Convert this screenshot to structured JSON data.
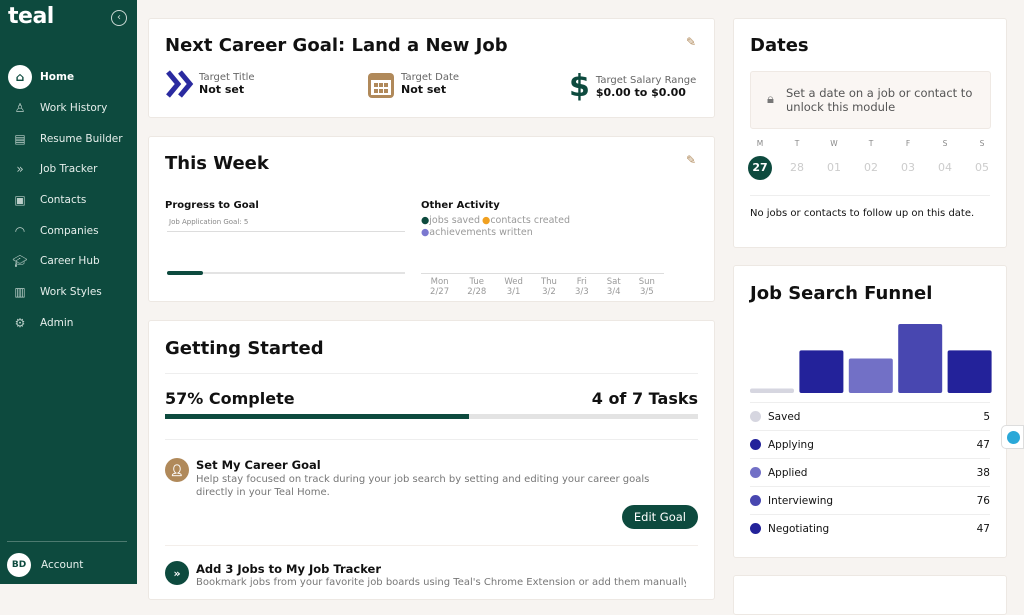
{
  "sidebar": {
    "logo": "teal",
    "collapse_icon": "chevron-left-icon",
    "items": [
      {
        "label": "Home",
        "icon": "home-icon",
        "active": true
      },
      {
        "label": "Work History",
        "icon": "person-icon"
      },
      {
        "label": "Resume Builder",
        "icon": "document-icon"
      },
      {
        "label": "Job Tracker",
        "icon": "chevrons-right-icon"
      },
      {
        "label": "Contacts",
        "icon": "contact-book-icon"
      },
      {
        "label": "Companies",
        "icon": "briefcase-icon"
      },
      {
        "label": "Career Hub",
        "icon": "graduation-cap-icon"
      },
      {
        "label": "Work Styles",
        "icon": "bar-chart-icon"
      },
      {
        "label": "Admin",
        "icon": "gear-icon"
      }
    ],
    "account": {
      "initials": "BD",
      "label": "Account"
    }
  },
  "goal": {
    "title": "Next Career Goal: Land a New Job",
    "items": [
      {
        "label": "Target Title",
        "value": "Not set"
      },
      {
        "label": "Target Date",
        "value": "Not set"
      },
      {
        "label": "Target Salary Range",
        "value": "$0.00 to $0.00"
      }
    ]
  },
  "week": {
    "title": "This Week",
    "progress_title": "Progress to Goal",
    "goal_label": "Job Application Goal: 5",
    "progress_fraction": 0.15,
    "other_title": "Other Activity",
    "legend": [
      {
        "label": "jobs saved",
        "color": "#0d4a3e"
      },
      {
        "label": "contacts created",
        "color": "#f0a020"
      },
      {
        "label": "achievements written",
        "color": "#7b78d0"
      }
    ],
    "days": [
      {
        "d": "Mon",
        "date": "2/27"
      },
      {
        "d": "Tue",
        "date": "2/28"
      },
      {
        "d": "Wed",
        "date": "3/1"
      },
      {
        "d": "Thu",
        "date": "3/2"
      },
      {
        "d": "Fri",
        "date": "3/3"
      },
      {
        "d": "Sat",
        "date": "3/4"
      },
      {
        "d": "Sun",
        "date": "3/5"
      }
    ]
  },
  "started": {
    "title": "Getting Started",
    "complete": "57% Complete",
    "tasks": "4 of 7 Tasks",
    "progress": 0.57,
    "items": [
      {
        "title": "Set My Career Goal",
        "desc": "Help stay focused on track during your job search by setting and editing your career goals directly in your Teal Home.",
        "button": "Edit Goal"
      },
      {
        "title": "Add 3 Jobs to My Job Tracker",
        "desc": "Bookmark jobs from your favorite job boards using Teal's Chrome Extension or add them manually."
      }
    ]
  },
  "dates": {
    "title": "Dates",
    "locked": "Set a date on a job or contact to unlock this module",
    "weekdays": [
      "M",
      "T",
      "W",
      "T",
      "F",
      "S",
      "S"
    ],
    "days": [
      "27",
      "28",
      "01",
      "02",
      "03",
      "04",
      "05"
    ],
    "empty": "No jobs or contacts to follow up on this date."
  },
  "funnel": {
    "title": "Job Search Funnel",
    "stages": [
      {
        "label": "Saved",
        "value": 5,
        "color": "#d6d6e0"
      },
      {
        "label": "Applying",
        "value": 47,
        "color": "#23229a"
      },
      {
        "label": "Applied",
        "value": 38,
        "color": "#7270c6"
      },
      {
        "label": "Interviewing",
        "value": 76,
        "color": "#4847b0"
      },
      {
        "label": "Negotiating",
        "value": 47,
        "color": "#23229a"
      }
    ]
  }
}
